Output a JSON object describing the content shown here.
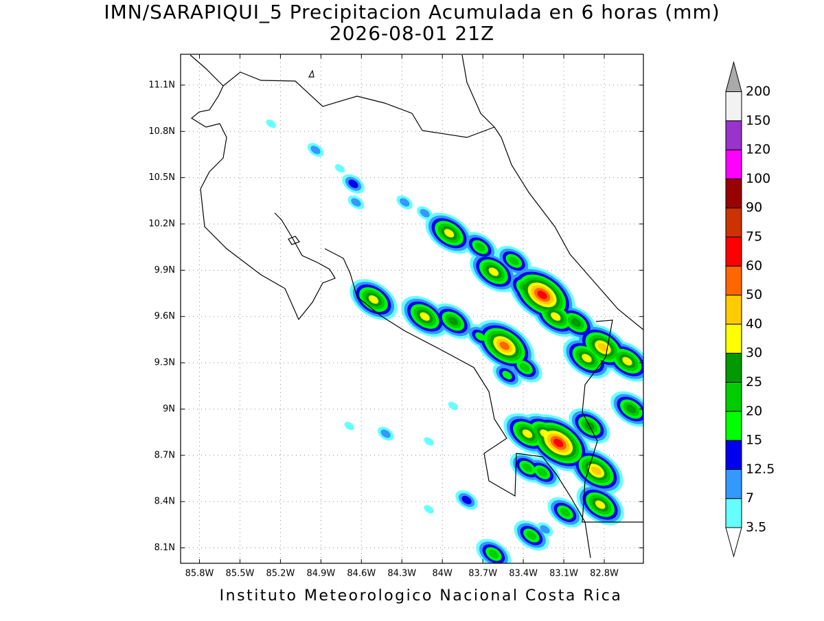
{
  "chart_data": {
    "type": "map",
    "title": "IMN/SARAPIQUI_5 Precipitacion Acumulada en 6 horas (mm)",
    "subtitle": "2026-08-01 21Z",
    "footer": "Instituto Meteorologico Nacional Costa Rica",
    "xlim": [
      -85.94,
      -82.51
    ],
    "ylim": [
      8.0,
      11.3
    ],
    "xticks": [
      {
        "value": -85.8,
        "label": "85.8W"
      },
      {
        "value": -85.5,
        "label": "85.5W"
      },
      {
        "value": -85.2,
        "label": "85.2W"
      },
      {
        "value": -84.9,
        "label": "84.9W"
      },
      {
        "value": -84.6,
        "label": "84.6W"
      },
      {
        "value": -84.3,
        "label": "84.3W"
      },
      {
        "value": -84.0,
        "label": "84W"
      },
      {
        "value": -83.7,
        "label": "83.7W"
      },
      {
        "value": -83.4,
        "label": "83.4W"
      },
      {
        "value": -83.1,
        "label": "83.1W"
      },
      {
        "value": -82.8,
        "label": "82.8W"
      }
    ],
    "yticks": [
      {
        "value": 8.1,
        "label": "8.1N"
      },
      {
        "value": 8.4,
        "label": "8.4N"
      },
      {
        "value": 8.7,
        "label": "8.7N"
      },
      {
        "value": 9.0,
        "label": "9N"
      },
      {
        "value": 9.3,
        "label": "9.3N"
      },
      {
        "value": 9.6,
        "label": "9.6N"
      },
      {
        "value": 9.9,
        "label": "9.9N"
      },
      {
        "value": 10.2,
        "label": "10.2N"
      },
      {
        "value": 10.5,
        "label": "10.5N"
      },
      {
        "value": 10.8,
        "label": "10.8N"
      },
      {
        "value": 11.1,
        "label": "11.1N"
      }
    ],
    "grid": true,
    "levels": [
      3.5,
      7,
      12.5,
      15,
      20,
      25,
      30,
      40,
      50,
      60,
      75,
      90,
      100,
      120,
      150,
      200
    ],
    "colors": [
      "#66ffff",
      "#3399ff",
      "#0000ee",
      "#00ff00",
      "#00cc00",
      "#009900",
      "#ffff00",
      "#ffcc00",
      "#ff6600",
      "#ff0000",
      "#cc3300",
      "#990000",
      "#ff00ff",
      "#9933cc",
      "#f2f2f2"
    ],
    "over_color": "#aaaaaa",
    "under_color": "#ffffff",
    "cells": {
      "lon": [
        -85.27,
        -84.94,
        -84.76,
        -84.66,
        -84.64,
        -84.28,
        -84.13,
        -83.95,
        -83.72,
        -83.62,
        -83.47,
        -83.26,
        -83.37,
        -83.16,
        -83.01,
        -82.81,
        -82.93,
        -82.63,
        -82.6,
        -84.51,
        -84.13,
        -83.92,
        -83.72,
        -83.54,
        -83.39,
        -83.52,
        -83.37,
        -83.14,
        -83.24,
        -82.91,
        -82.86,
        -82.83,
        -83.09,
        -83.37,
        -83.26,
        -83.82,
        -84.1,
        -83.34,
        -83.62,
        -83.24,
        -84.69,
        -84.42,
        -84.1,
        -83.92
      ],
      "lat": [
        10.85,
        10.68,
        10.56,
        10.46,
        10.34,
        10.34,
        10.27,
        10.14,
        10.05,
        9.89,
        9.96,
        9.74,
        9.78,
        9.6,
        9.56,
        9.4,
        9.33,
        9.31,
        9.0,
        9.71,
        9.6,
        9.57,
        9.47,
        9.41,
        9.27,
        9.22,
        8.84,
        8.78,
        8.84,
        8.89,
        8.6,
        8.38,
        8.33,
        8.62,
        8.59,
        8.41,
        8.35,
        8.18,
        8.06,
        8.22,
        8.89,
        8.84,
        8.79,
        9.02
      ],
      "values": [
        5,
        7,
        5,
        12.5,
        7,
        7,
        7,
        35,
        22,
        30,
        22,
        65,
        25,
        35,
        25,
        45,
        35,
        35,
        28,
        35,
        35,
        27,
        18,
        55,
        20,
        15,
        35,
        62,
        35,
        25,
        40,
        30,
        20,
        20,
        22,
        12.5,
        5,
        22,
        22,
        7,
        5,
        8,
        5,
        5
      ]
    }
  }
}
